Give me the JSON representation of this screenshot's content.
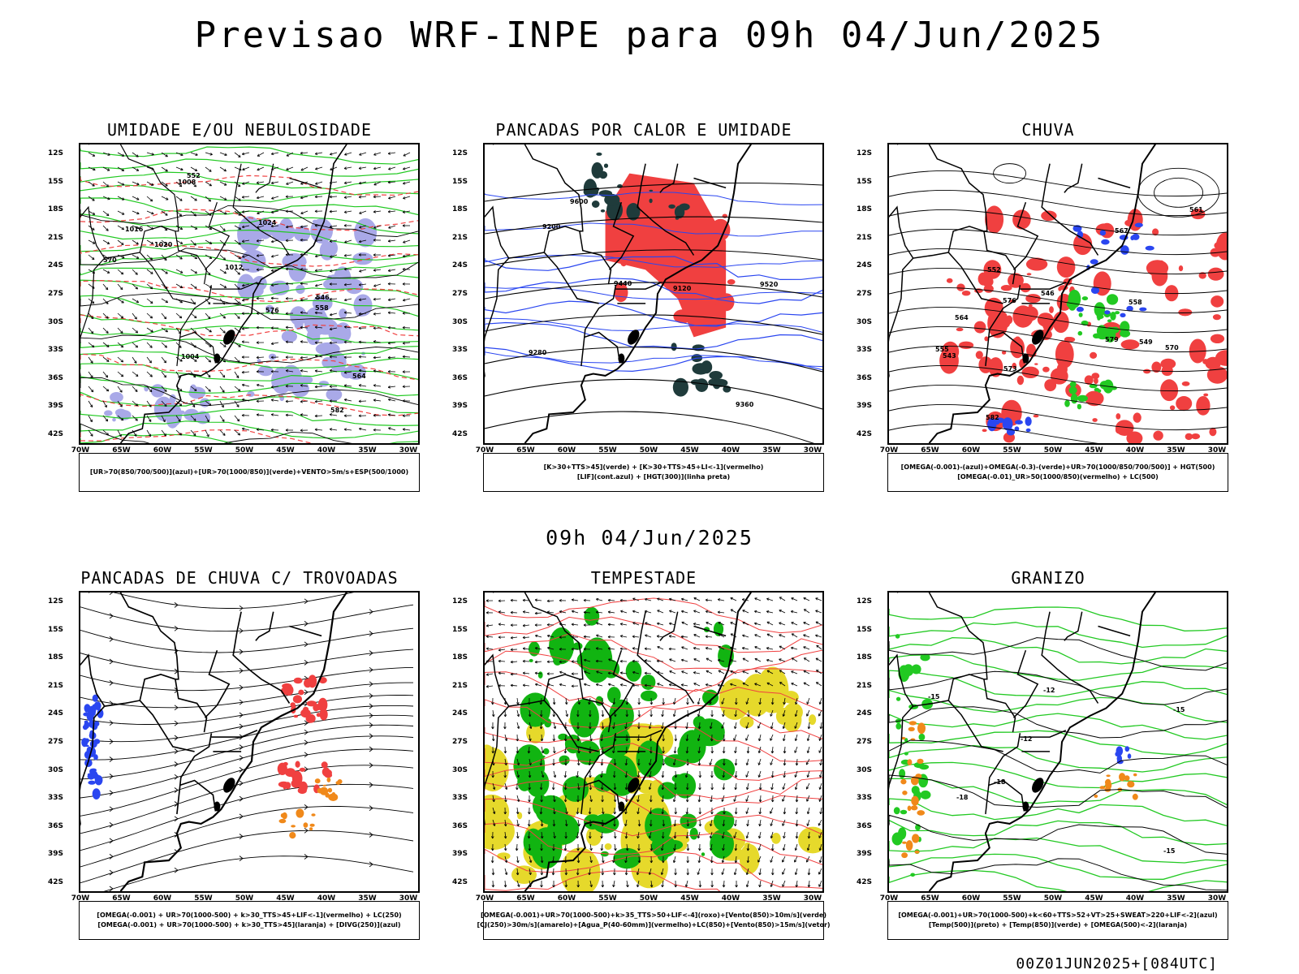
{
  "title": "Previsao WRF-INPE  para 09h 04/Jun/2025",
  "mid_title": "09h 04/Jun/2025",
  "footer": "00Z01JUN2025+[084UTC]",
  "lat_labels": [
    "12S",
    "15S",
    "18S",
    "21S",
    "24S",
    "27S",
    "30S",
    "33S",
    "36S",
    "39S",
    "42S"
  ],
  "lon_labels": [
    "70W",
    "65W",
    "60W",
    "55W",
    "50W",
    "45W",
    "40W",
    "35W",
    "30W"
  ],
  "panels": [
    {
      "title": "UMIDADE E/OU NEBULOSIDADE",
      "legend": [
        "[UR>70(850/700/500)](azul)+[UR>70(1000/850)](verde)+VENTO>5m/s+ESP(500/1000)"
      ],
      "contour_labels": [
        "1020",
        "1016",
        "1012",
        "1008",
        "1004",
        "1024",
        "570",
        "576",
        "564",
        "558",
        "552",
        "546",
        "582"
      ]
    },
    {
      "title": "PANCADAS POR CALOR E UMIDADE",
      "legend": [
        "[K>30+TTS>45](verde) + [K>30+TTS>45+LI<-1](vermelho)",
        "[LIF](cont.azul) + [HGT(300)](linha preta)"
      ],
      "contour_labels": [
        "9600",
        "9520",
        "9440",
        "9360",
        "9280",
        "9200",
        "9120"
      ]
    },
    {
      "title": "CHUVA",
      "legend": [
        "[OMEGA(-0.001)-(azul)+OMEGA(-0.3)-(verde)+UR>70(1000/850/700/500)] + HGT(500)",
        "[OMEGA(-0.01)_UR>50(1000/850)(vermelho) + LC(500)"
      ],
      "contour_labels": [
        "582",
        "579",
        "576",
        "573",
        "570",
        "567",
        "564",
        "561",
        "558",
        "555",
        "552",
        "549",
        "546",
        "543"
      ]
    },
    {
      "title": "PANCADAS DE CHUVA C/ TROVOADAS",
      "legend": [
        "[OMEGA(-0.001) + UR>70(1000-500) + k>30_TTS>45+LIF<-1](vermelho) + LC(250)",
        "[OMEGA(-0.001) + UR>70(1000-500) + k>30_TTS>45](laranja) + [DIVG(250)](azul)"
      ],
      "contour_labels": []
    },
    {
      "title": "TEMPESTADE",
      "legend": [
        "[OMEGA(-0.001)+UR>70(1000-500)+k>35_TTS>50+LIF<-4](roxo)+[Vento(850)>10m/s](verde)",
        "[CJ(250)>30m/s](amarelo)+[Agua_P(40-60mm)](vermelho)+LC(850)+[Vento(850)>15m/s](vetor)"
      ],
      "contour_labels": []
    },
    {
      "title": "GRANIZO",
      "legend": [
        "[OMEGA(-0.001)+UR>70(1000-500)+k<60+TTS>52+VT>25+SWEAT>220+LIF<-2](azul)",
        "[Temp(500)](preto) + [Temp(850)](verde) + [OMEGA(500)<-2](laranja)"
      ],
      "contour_labels": [
        "-12",
        "-15",
        "-18",
        "-15",
        "-18",
        "-12",
        "-15"
      ]
    }
  ],
  "colors": {
    "blue": "#2a46f0",
    "green": "#22c922",
    "red": "#f04040",
    "orange": "#f0891a",
    "yellow": "#e6d92b",
    "darkslate": "#1f3b3b",
    "lavender": "#a9a9e8",
    "vector_green": "#11b411"
  }
}
